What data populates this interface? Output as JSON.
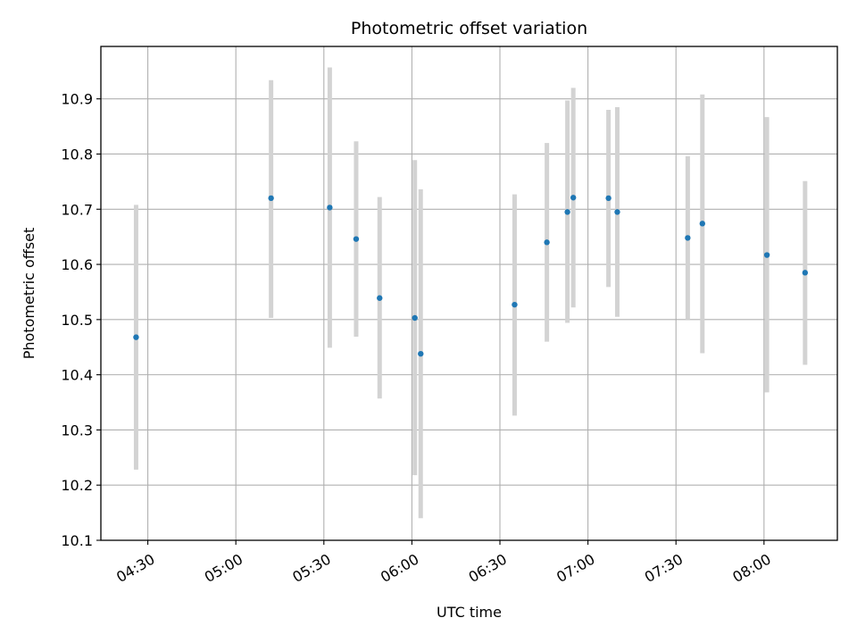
{
  "chart_data": {
    "type": "scatter",
    "title": "Photometric offset variation",
    "xlabel": "UTC time",
    "ylabel": "Photometric offset",
    "x_ticks": [
      "04:30",
      "05:00",
      "05:30",
      "06:00",
      "06:30",
      "07:00",
      "07:30",
      "08:00"
    ],
    "y_ticks": [
      "10.1",
      "10.2",
      "10.3",
      "10.4",
      "10.5",
      "10.6",
      "10.7",
      "10.8",
      "10.9"
    ],
    "xlim": [
      "04:14",
      "08:25"
    ],
    "ylim": [
      10.1,
      10.995
    ],
    "grid": true,
    "point_color": "#1f77b4",
    "errorbar_color": "#d3d3d3",
    "points": [
      {
        "time": "04:26",
        "y": 10.468,
        "ylow": 10.228,
        "yhigh": 10.708
      },
      {
        "time": "05:12",
        "y": 10.72,
        "ylow": 10.503,
        "yhigh": 10.934
      },
      {
        "time": "05:32",
        "y": 10.703,
        "ylow": 10.449,
        "yhigh": 10.957
      },
      {
        "time": "05:41",
        "y": 10.646,
        "ylow": 10.469,
        "yhigh": 10.823
      },
      {
        "time": "05:49",
        "y": 10.539,
        "ylow": 10.357,
        "yhigh": 10.722
      },
      {
        "time": "06:01",
        "y": 10.503,
        "ylow": 10.218,
        "yhigh": 10.789
      },
      {
        "time": "06:03",
        "y": 10.438,
        "ylow": 10.14,
        "yhigh": 10.736
      },
      {
        "time": "06:35",
        "y": 10.527,
        "ylow": 10.326,
        "yhigh": 10.727
      },
      {
        "time": "06:46",
        "y": 10.64,
        "ylow": 10.46,
        "yhigh": 10.82
      },
      {
        "time": "06:53",
        "y": 10.695,
        "ylow": 10.494,
        "yhigh": 10.897
      },
      {
        "time": "06:55",
        "y": 10.721,
        "ylow": 10.522,
        "yhigh": 10.92
      },
      {
        "time": "07:07",
        "y": 10.72,
        "ylow": 10.559,
        "yhigh": 10.88
      },
      {
        "time": "07:10",
        "y": 10.695,
        "ylow": 10.505,
        "yhigh": 10.885
      },
      {
        "time": "07:34",
        "y": 10.648,
        "ylow": 10.5,
        "yhigh": 10.796
      },
      {
        "time": "07:39",
        "y": 10.674,
        "ylow": 10.439,
        "yhigh": 10.908
      },
      {
        "time": "08:01",
        "y": 10.617,
        "ylow": 10.368,
        "yhigh": 10.867
      },
      {
        "time": "08:14",
        "y": 10.585,
        "ylow": 10.418,
        "yhigh": 10.751
      }
    ]
  }
}
